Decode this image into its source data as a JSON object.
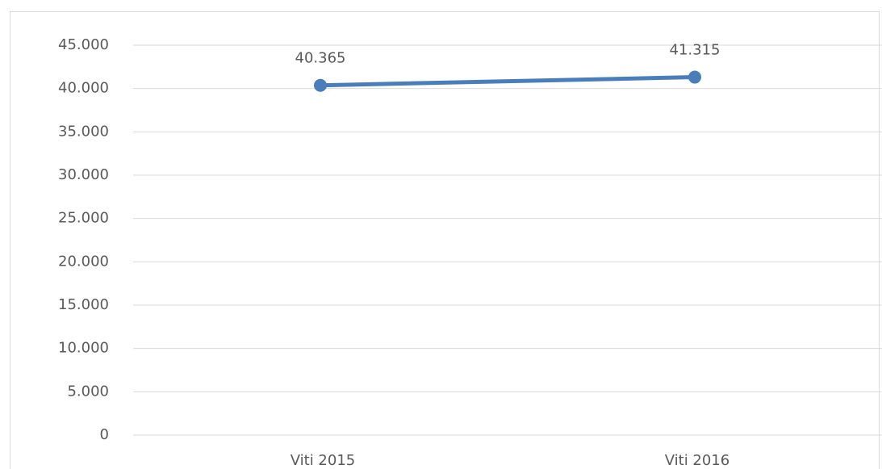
{
  "chart_data": {
    "type": "line",
    "categories": [
      "Viti 2015",
      "Viti 2016"
    ],
    "series": [
      {
        "color": "#4a7ebb",
        "values": [
          40365,
          41315
        ],
        "value_labels": [
          "40.365",
          "41.315"
        ]
      }
    ],
    "ylim": [
      0,
      45000
    ],
    "yticks": [
      0,
      {
        "value": 5000,
        "label": "5.000"
      },
      {
        "value": 10000,
        "label": "10.000"
      },
      {
        "value": 15000,
        "label": "15.000"
      },
      {
        "value": 20000,
        "label": "20.000"
      },
      {
        "value": 25000,
        "label": "25.000"
      },
      {
        "value": 30000,
        "label": "30.000"
      },
      {
        "value": 35000,
        "label": "35.000"
      },
      {
        "value": 40000,
        "label": "40.000"
      },
      {
        "value": 45000,
        "label": "45.000"
      }
    ],
    "grid": true
  }
}
